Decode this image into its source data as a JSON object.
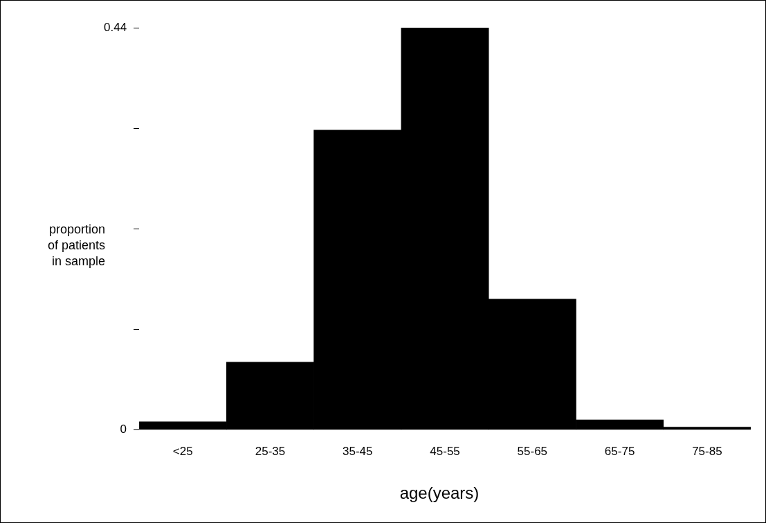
{
  "chart_data": {
    "type": "bar",
    "xlabel": "age(years)",
    "ylabel": "proportion\nof patients\nin sample",
    "categories": [
      "<25",
      "25-35",
      "35-45",
      "45-55",
      "55-65",
      "65-75",
      "75-85"
    ],
    "values": [
      0.009,
      0.074,
      0.328,
      0.44,
      0.143,
      0.011,
      0.003
    ],
    "color": "#000000",
    "ylim": [
      0,
      0.44
    ],
    "yticks": [
      0,
      {
        "value": 0.11,
        "label": null
      },
      {
        "value": 0.22,
        "label": null
      },
      {
        "value": 0.33,
        "label": null
      },
      0.44
    ],
    "grid": false,
    "legend": false
  }
}
